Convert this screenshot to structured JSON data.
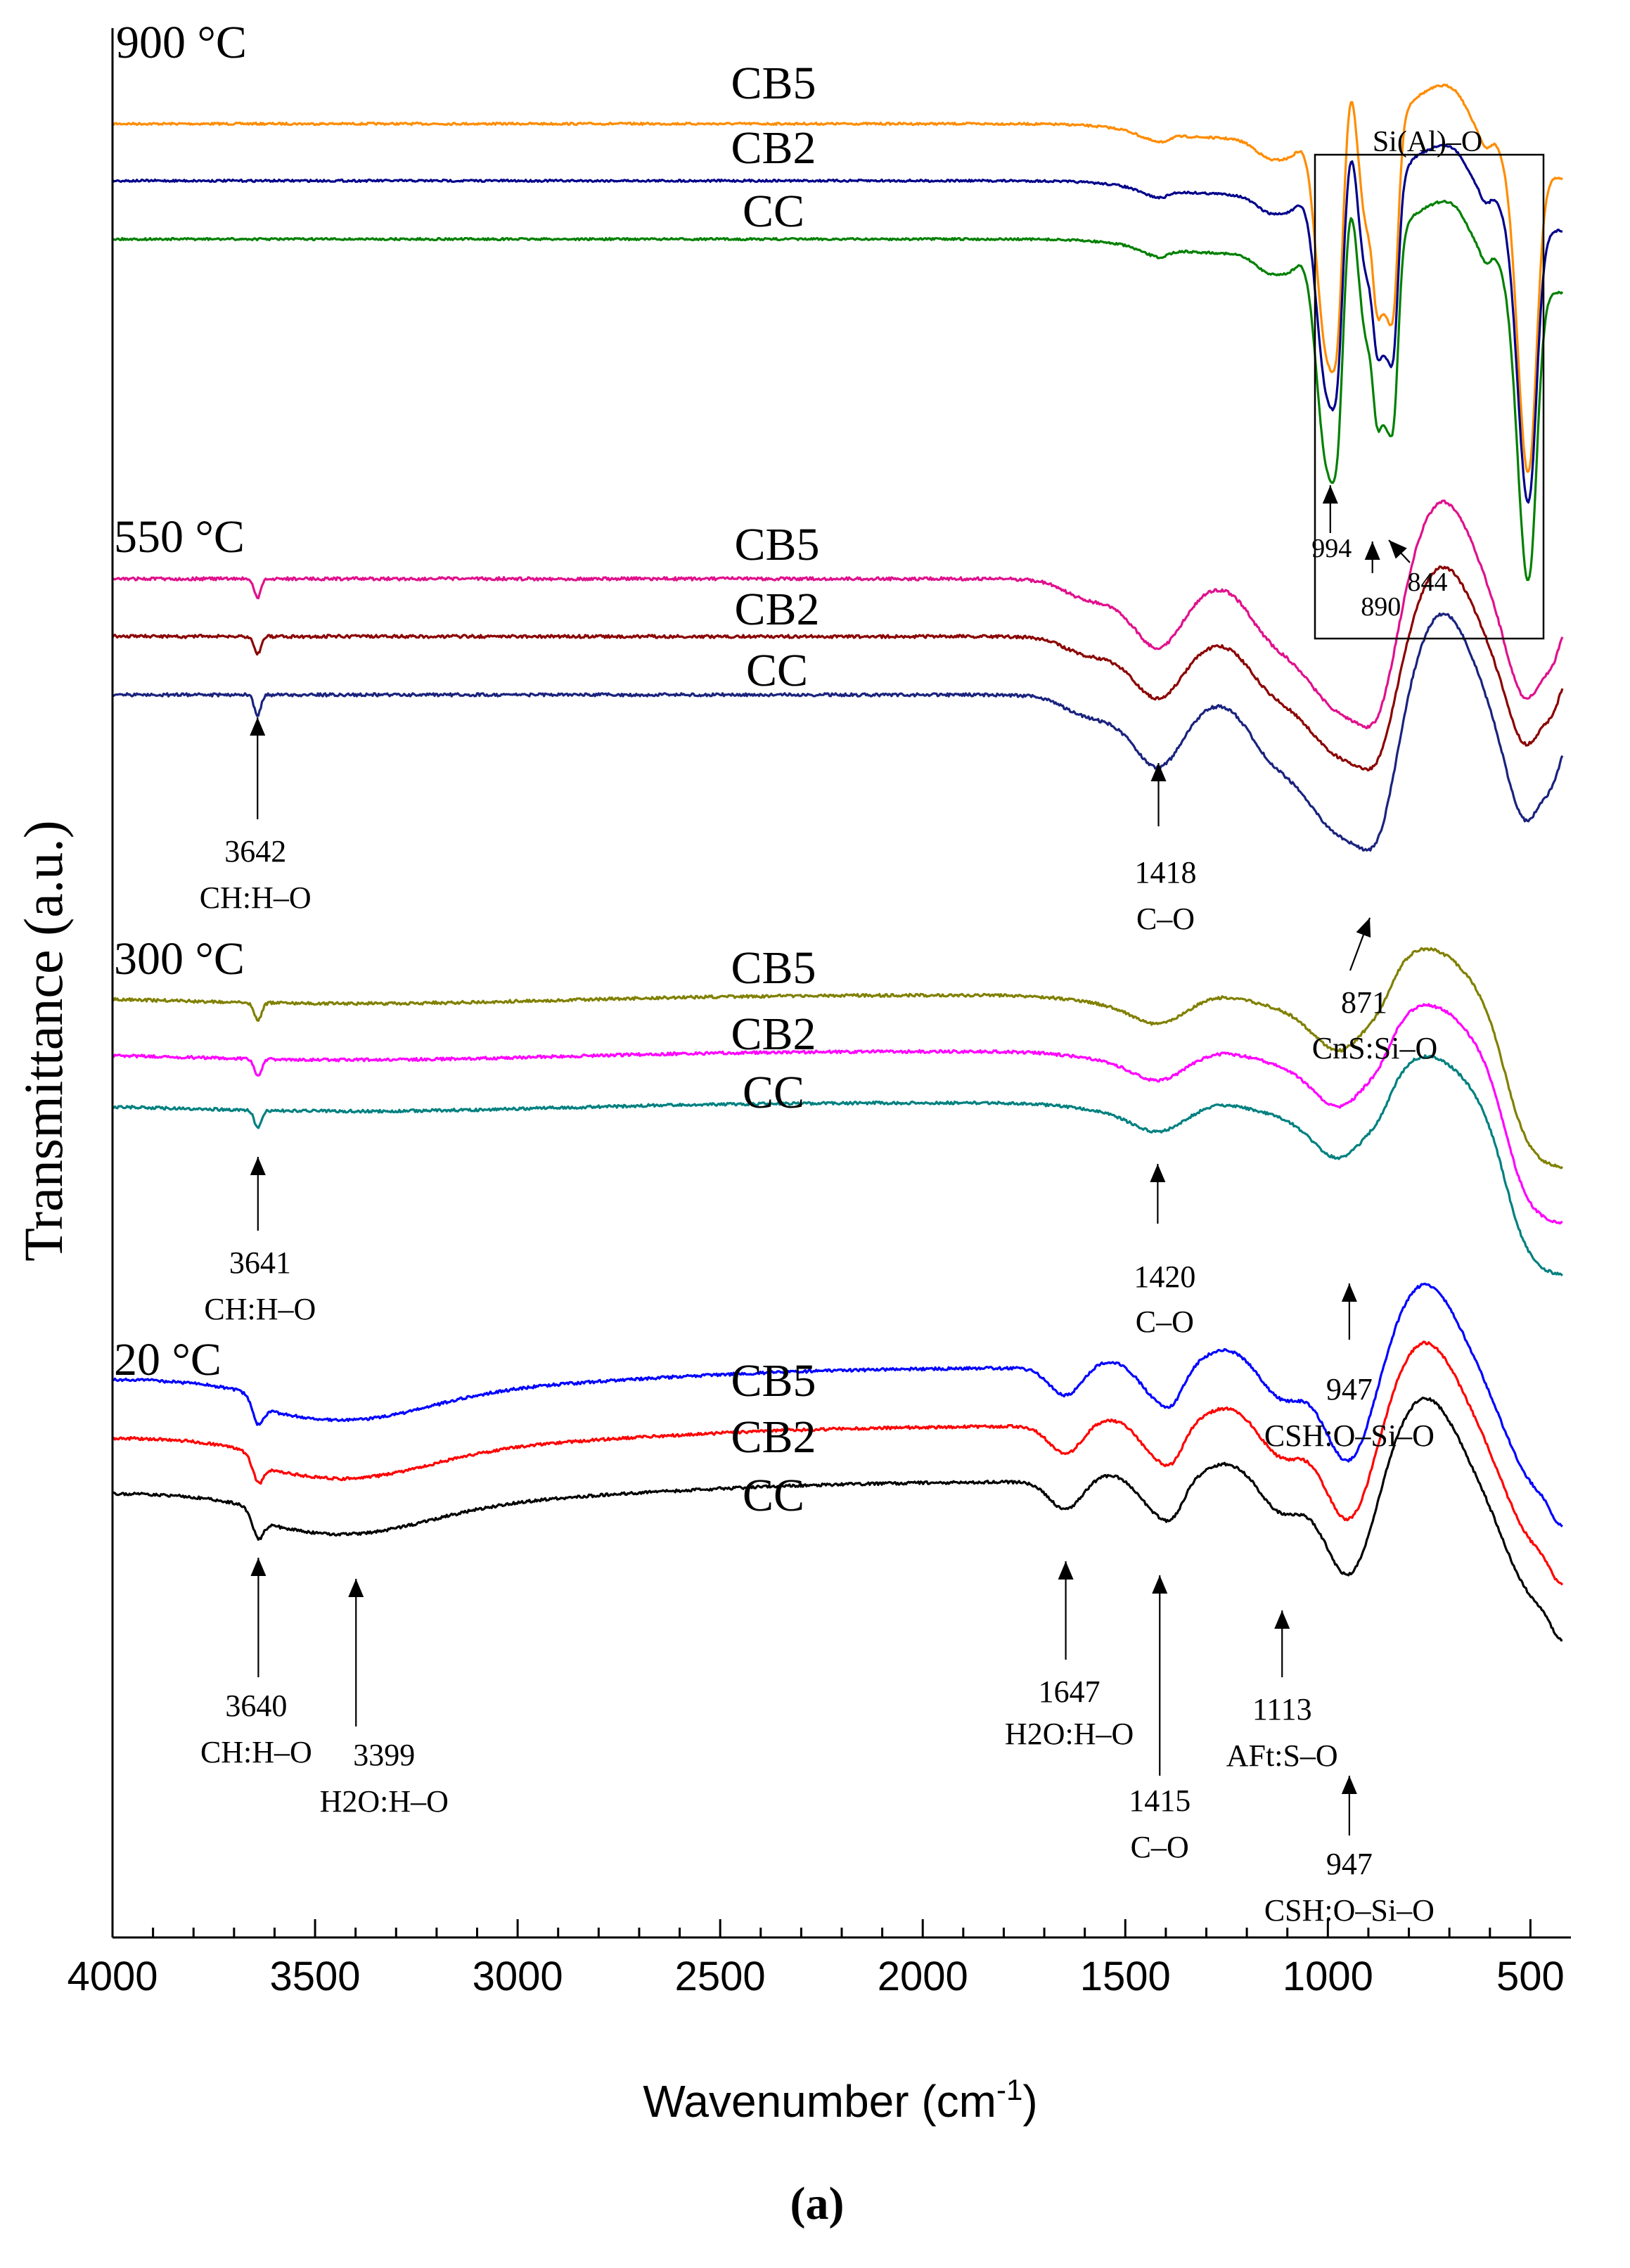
{
  "chart_data": {
    "type": "line",
    "xlabel": "Wavenumber (cm",
    "xlabel_sup": "-1",
    "xlabel_close": ")",
    "ylabel": "Transmittance (a.u.)",
    "xlim": [
      4000,
      400
    ],
    "x_reversed": true,
    "x_ticks": [
      4000,
      3500,
      3000,
      2500,
      2000,
      1500,
      1000,
      500
    ],
    "y_ticks": "none",
    "subfigure_label": "(a)",
    "panels": [
      {
        "temperature": "900 °C",
        "series": [
          {
            "name": "CB5",
            "color": "#ff8c00"
          },
          {
            "name": "CB2",
            "color": "#00008b"
          },
          {
            "name": "CC",
            "color": "#008000"
          }
        ],
        "box_label": "Si(Al)–O",
        "annotations": [
          {
            "value": "994",
            "at_wavenumber": 994
          },
          {
            "value": "890",
            "at_wavenumber": 890
          },
          {
            "value": "844",
            "at_wavenumber": 844
          }
        ]
      },
      {
        "temperature": "550 °C",
        "series": [
          {
            "name": "CB5",
            "color": "#e0118c"
          },
          {
            "name": "CB2",
            "color": "#8b0000"
          },
          {
            "name": "CC",
            "color": "#1a237e"
          }
        ],
        "annotations": [
          {
            "value": "3642",
            "label": "CH:H–O",
            "at_wavenumber": 3642
          },
          {
            "value": "1418",
            "label": "C–O",
            "at_wavenumber": 1418
          },
          {
            "value": "871",
            "label": "CnS:Si–O",
            "at_wavenumber": 871
          }
        ]
      },
      {
        "temperature": "300 °C",
        "series": [
          {
            "name": "CB5",
            "color": "#808000"
          },
          {
            "name": "CB2",
            "color": "#ff00ff"
          },
          {
            "name": "CC",
            "color": "#008080"
          }
        ],
        "annotations": [
          {
            "value": "3641",
            "label": "CH:H–O",
            "at_wavenumber": 3641
          },
          {
            "value": "1420",
            "label": "C–O",
            "at_wavenumber": 1420
          },
          {
            "value": "947",
            "label": "CSH:O–Si–O",
            "at_wavenumber": 947
          }
        ]
      },
      {
        "temperature": "20 °C",
        "series": [
          {
            "name": "CB5",
            "color": "#0000ff"
          },
          {
            "name": "CB2",
            "color": "#ff0000"
          },
          {
            "name": "CC",
            "color": "#000000"
          }
        ],
        "annotations": [
          {
            "value": "3640",
            "label": "CH:H–O",
            "at_wavenumber": 3640
          },
          {
            "value": "3399",
            "label": "H2O:H–O",
            "at_wavenumber": 3399
          },
          {
            "value": "1647",
            "label": "H2O:H–O",
            "at_wavenumber": 1647
          },
          {
            "value": "1415",
            "label": "C–O",
            "at_wavenumber": 1415
          },
          {
            "value": "1113",
            "label": "AFt:S–O",
            "at_wavenumber": 1113
          },
          {
            "value": "947",
            "label": "CSH:O–Si–O",
            "at_wavenumber": 947
          }
        ]
      }
    ]
  }
}
